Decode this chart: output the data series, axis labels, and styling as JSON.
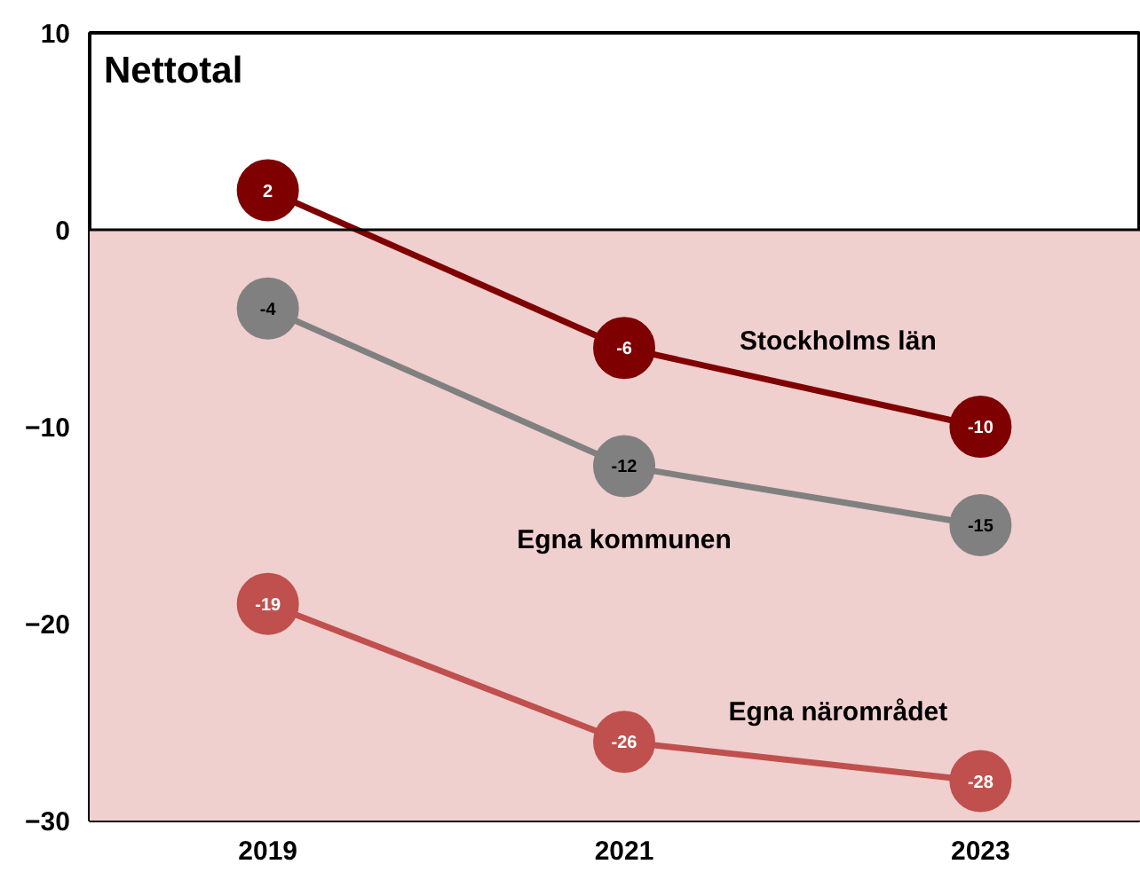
{
  "chart_data": {
    "type": "line",
    "title": "Nettotal",
    "categories": [
      "2019",
      "2021",
      "2023"
    ],
    "series": [
      {
        "name": "Stockholms län",
        "color": "#7f0000",
        "values": [
          2,
          -6,
          -10
        ]
      },
      {
        "name": "Egna kommunen",
        "color": "#808080",
        "values": [
          -4,
          -12,
          -15
        ]
      },
      {
        "name": "Egna närområdet",
        "color": "#c0504d",
        "values": [
          -19,
          -26,
          -28
        ]
      }
    ],
    "ylim": [
      -30,
      10
    ],
    "yticks": [
      -30,
      -20,
      -10,
      0,
      10
    ],
    "ref_lines": [
      {
        "axis": "y",
        "value": 0,
        "color": "#000000"
      }
    ],
    "bands": [
      {
        "axis": "y",
        "from": -30,
        "to": 0,
        "color": "#f0cfcf"
      }
    ],
    "data_labels": true,
    "marker": "circle",
    "line_style": "solid",
    "grid": false
  }
}
